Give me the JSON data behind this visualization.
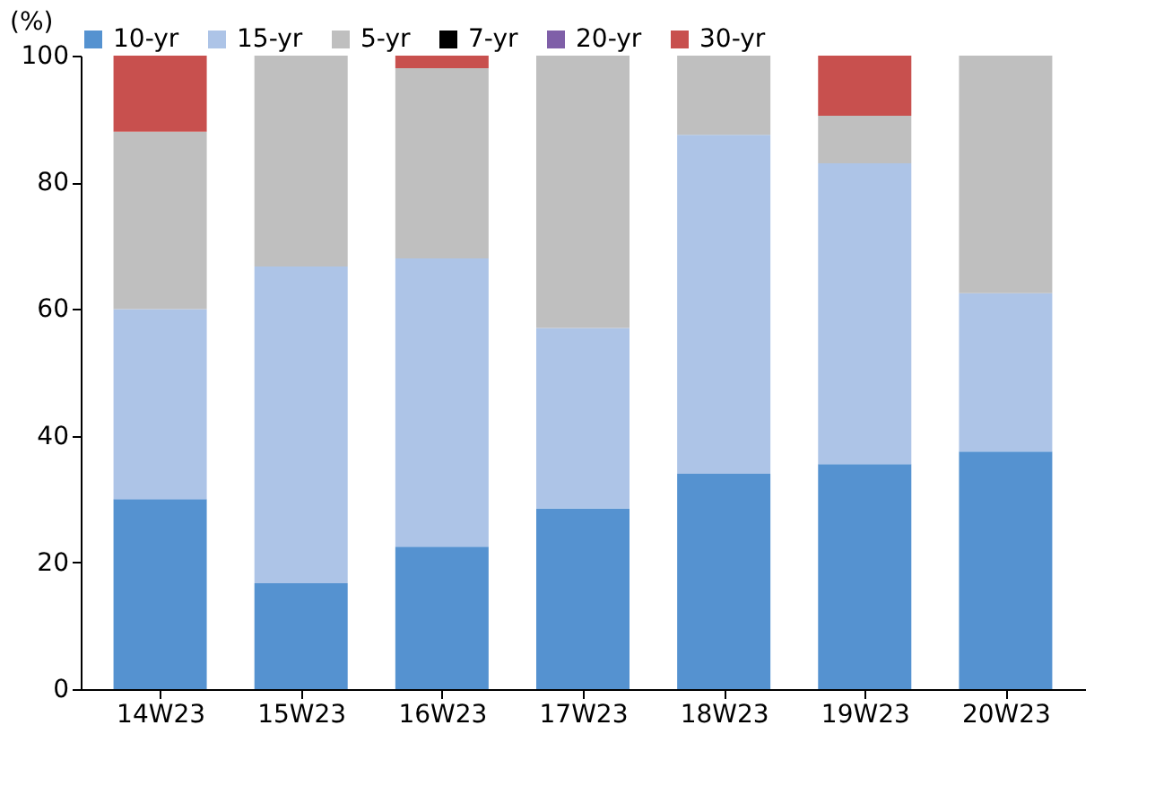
{
  "chart_data": {
    "type": "bar",
    "stacked": true,
    "ylabel": "(%)",
    "categories": [
      "14W23",
      "15W23",
      "16W23",
      "17W23",
      "18W23",
      "19W23",
      "20W23"
    ],
    "series": [
      {
        "name": "10-yr",
        "color": "#5592d0",
        "values": [
          30,
          16.7,
          22.5,
          28.5,
          34,
          35.5,
          37.5
        ]
      },
      {
        "name": "15-yr",
        "color": "#adc4e7",
        "values": [
          30,
          50,
          45.5,
          28.5,
          53.5,
          47.5,
          25
        ]
      },
      {
        "name": "5-yr",
        "color": "#bfbfbf",
        "values": [
          28,
          33.3,
          30,
          43,
          12.5,
          7.5,
          37.5
        ]
      },
      {
        "name": "7-yr",
        "color": "#000000",
        "values": [
          0,
          0,
          0,
          0,
          0,
          0,
          0
        ]
      },
      {
        "name": "20-yr",
        "color": "#7f5fa8",
        "values": [
          0,
          0,
          0,
          0,
          0,
          0,
          0
        ]
      },
      {
        "name": "30-yr",
        "color": "#c8504e",
        "values": [
          12,
          0,
          2,
          0,
          0,
          9.5,
          0
        ]
      }
    ],
    "ylim": [
      0,
      100
    ],
    "yticks": [
      0,
      20,
      40,
      60,
      80,
      100
    ],
    "grid": false,
    "legend": "top"
  }
}
